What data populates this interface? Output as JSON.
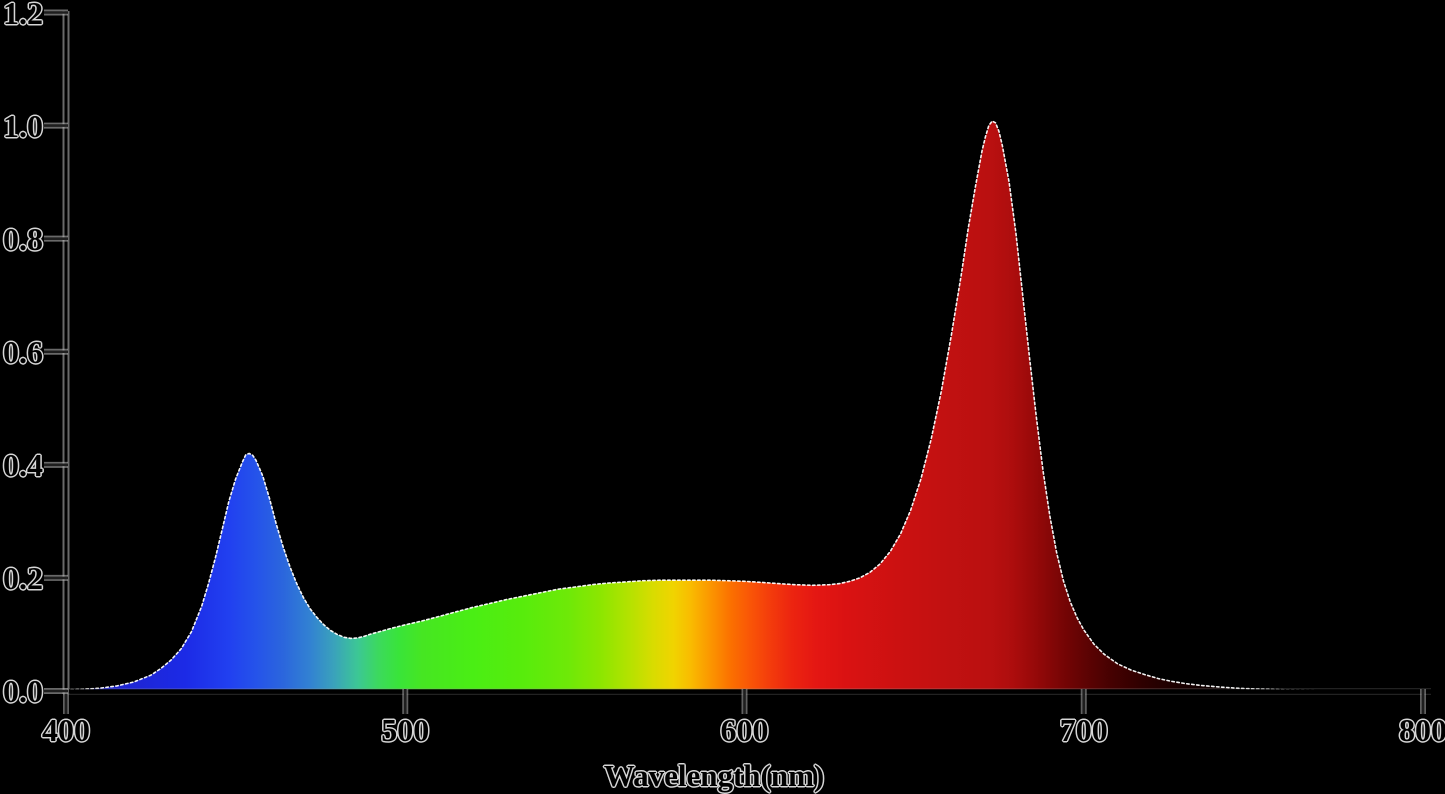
{
  "chart_data": {
    "type": "area",
    "title": "",
    "xlabel": "Wavelength(nm)",
    "ylabel": "",
    "xlim": [
      400,
      800
    ],
    "ylim": [
      0.0,
      1.2
    ],
    "grid": false,
    "legend": null,
    "background_color": "#000000",
    "label_color": "#000000",
    "label_halo_color": "#d6d6d6",
    "curve_outline_color": "#ffffff",
    "axis_core_color": "#000000",
    "axis_halo_color": "#c0c0c0",
    "xticks": [
      400,
      500,
      600,
      700,
      800
    ],
    "xtick_labels": [
      "400",
      "500",
      "600",
      "700",
      "800"
    ],
    "yticks": [
      0.0,
      0.2,
      0.4,
      0.6,
      0.8,
      1.0,
      1.2
    ],
    "ytick_labels": [
      "0.0",
      "0.2",
      "0.4",
      "0.6",
      "0.8",
      "1.0",
      "1.2"
    ],
    "peaks": [
      {
        "wavelength": 453,
        "intensity": 0.42
      },
      {
        "wavelength": 672,
        "intensity": 1.01
      }
    ],
    "series": [
      {
        "name": "spectral-intensity",
        "x": [
          400,
          405,
          410,
          415,
          420,
          425,
          428,
          431,
          434,
          437,
          440,
          442,
          444,
          446,
          448,
          450,
          452,
          453,
          454,
          455,
          456,
          458,
          460,
          462,
          464,
          466,
          468,
          470,
          472,
          474,
          476,
          478,
          480,
          482,
          484,
          486,
          488,
          490,
          493,
          496,
          500,
          505,
          510,
          515,
          520,
          525,
          530,
          535,
          540,
          545,
          550,
          555,
          560,
          565,
          570,
          575,
          580,
          585,
          590,
          595,
          600,
          605,
          610,
          615,
          620,
          625,
          628,
          631,
          634,
          637,
          640,
          643,
          646,
          649,
          652,
          655,
          658,
          661,
          664,
          666,
          668,
          670,
          671,
          672,
          673,
          674,
          675,
          676,
          678,
          680,
          682,
          684,
          686,
          688,
          690,
          692,
          694,
          696,
          698,
          700,
          703,
          706,
          710,
          714,
          718,
          722,
          726,
          730,
          735,
          740,
          745,
          750,
          755,
          760,
          770,
          780,
          790,
          800
        ],
        "y": [
          0.002,
          0.003,
          0.005,
          0.009,
          0.016,
          0.028,
          0.04,
          0.055,
          0.075,
          0.105,
          0.15,
          0.19,
          0.235,
          0.285,
          0.335,
          0.375,
          0.405,
          0.418,
          0.42,
          0.417,
          0.408,
          0.38,
          0.34,
          0.295,
          0.255,
          0.22,
          0.19,
          0.165,
          0.145,
          0.13,
          0.117,
          0.107,
          0.1,
          0.095,
          0.093,
          0.094,
          0.097,
          0.101,
          0.106,
          0.111,
          0.117,
          0.124,
          0.132,
          0.14,
          0.148,
          0.155,
          0.162,
          0.168,
          0.174,
          0.18,
          0.184,
          0.188,
          0.191,
          0.193,
          0.195,
          0.196,
          0.196,
          0.196,
          0.196,
          0.195,
          0.194,
          0.192,
          0.19,
          0.188,
          0.187,
          0.188,
          0.19,
          0.194,
          0.2,
          0.21,
          0.225,
          0.247,
          0.278,
          0.32,
          0.375,
          0.445,
          0.53,
          0.63,
          0.74,
          0.82,
          0.89,
          0.955,
          0.98,
          1.0,
          1.008,
          1.005,
          0.99,
          0.965,
          0.9,
          0.81,
          0.7,
          0.59,
          0.485,
          0.39,
          0.31,
          0.245,
          0.195,
          0.158,
          0.13,
          0.108,
          0.083,
          0.065,
          0.048,
          0.037,
          0.029,
          0.022,
          0.017,
          0.013,
          0.0095,
          0.007,
          0.005,
          0.0038,
          0.0028,
          0.002,
          0.0012,
          0.0007,
          0.0004,
          0.0002
        ]
      }
    ],
    "fill_gradient": {
      "mode": "wavelength-to-color",
      "stops": [
        {
          "wavelength": 400,
          "color": "#2020c0"
        },
        {
          "wavelength": 435,
          "color": "#1c2ae6"
        },
        {
          "wavelength": 448,
          "color": "#2140f0"
        },
        {
          "wavelength": 456,
          "color": "#2553ea"
        },
        {
          "wavelength": 464,
          "color": "#2b66dd"
        },
        {
          "wavelength": 472,
          "color": "#3282d2"
        },
        {
          "wavelength": 479,
          "color": "#3aa2bb"
        },
        {
          "wavelength": 486,
          "color": "#3cc795"
        },
        {
          "wavelength": 492,
          "color": "#3cd95e"
        },
        {
          "wavelength": 498,
          "color": "#39e43a"
        },
        {
          "wavelength": 505,
          "color": "#46e622"
        },
        {
          "wavelength": 520,
          "color": "#4aee14"
        },
        {
          "wavelength": 535,
          "color": "#58ec0c"
        },
        {
          "wavelength": 548,
          "color": "#6ee908"
        },
        {
          "wavelength": 558,
          "color": "#8ee600"
        },
        {
          "wavelength": 566,
          "color": "#b4e200"
        },
        {
          "wavelength": 573,
          "color": "#d8dc00"
        },
        {
          "wavelength": 579,
          "color": "#f0d400"
        },
        {
          "wavelength": 584,
          "color": "#f9bc00"
        },
        {
          "wavelength": 590,
          "color": "#fb9600"
        },
        {
          "wavelength": 596,
          "color": "#fb7000"
        },
        {
          "wavelength": 602,
          "color": "#f95407"
        },
        {
          "wavelength": 608,
          "color": "#f33a0c"
        },
        {
          "wavelength": 614,
          "color": "#ec2410"
        },
        {
          "wavelength": 621,
          "color": "#e41713"
        },
        {
          "wavelength": 630,
          "color": "#da1212"
        },
        {
          "wavelength": 645,
          "color": "#cc1111"
        },
        {
          "wavelength": 660,
          "color": "#c11111"
        },
        {
          "wavelength": 672,
          "color": "#ba1010"
        },
        {
          "wavelength": 679,
          "color": "#ad0d0d"
        },
        {
          "wavelength": 686,
          "color": "#950909"
        },
        {
          "wavelength": 693,
          "color": "#7a0505"
        },
        {
          "wavelength": 700,
          "color": "#600303"
        },
        {
          "wavelength": 708,
          "color": "#460101"
        },
        {
          "wavelength": 717,
          "color": "#2f0000"
        },
        {
          "wavelength": 728,
          "color": "#1a0000"
        },
        {
          "wavelength": 742,
          "color": "#0a0000"
        },
        {
          "wavelength": 760,
          "color": "#030000"
        },
        {
          "wavelength": 800,
          "color": "#000000"
        }
      ]
    }
  }
}
